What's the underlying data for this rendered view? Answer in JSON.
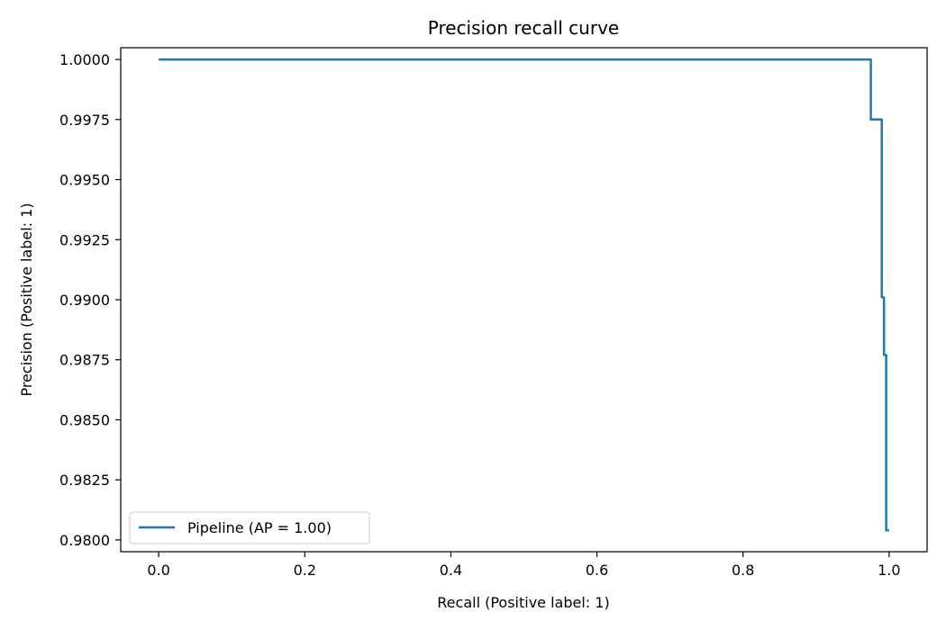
{
  "chart_data": {
    "type": "line",
    "title": "Precision recall curve",
    "xlabel": "Recall (Positive label: 1)",
    "ylabel": "Precision (Positive label: 1)",
    "xlim": [
      -0.052,
      1.052
    ],
    "ylim": [
      0.97951,
      1.00049
    ],
    "xticks": [
      0.0,
      0.2,
      0.4,
      0.6,
      0.8,
      1.0
    ],
    "xtick_labels": [
      "0.0",
      "0.2",
      "0.4",
      "0.6",
      "0.8",
      "1.0"
    ],
    "yticks": [
      0.98,
      0.9825,
      0.985,
      0.9875,
      0.99,
      0.9925,
      0.995,
      0.9975,
      1.0
    ],
    "ytick_labels": [
      "0.9800",
      "0.9825",
      "0.9850",
      "0.9875",
      "0.9900",
      "0.9925",
      "0.9950",
      "0.9975",
      "1.0000"
    ],
    "grid": false,
    "legend_position": "lower-left",
    "color": "#1f77b4",
    "series": [
      {
        "name": "Pipeline (AP = 1.00)",
        "step": "post",
        "x": [
          0.0,
          0.975,
          0.975,
          0.99,
          0.99,
          0.993,
          0.993,
          0.996,
          0.996,
          1.0
        ],
        "y": [
          1.0,
          1.0,
          0.9975,
          0.9975,
          0.9901,
          0.9901,
          0.9877,
          0.9877,
          0.9804,
          0.9804
        ]
      }
    ]
  }
}
